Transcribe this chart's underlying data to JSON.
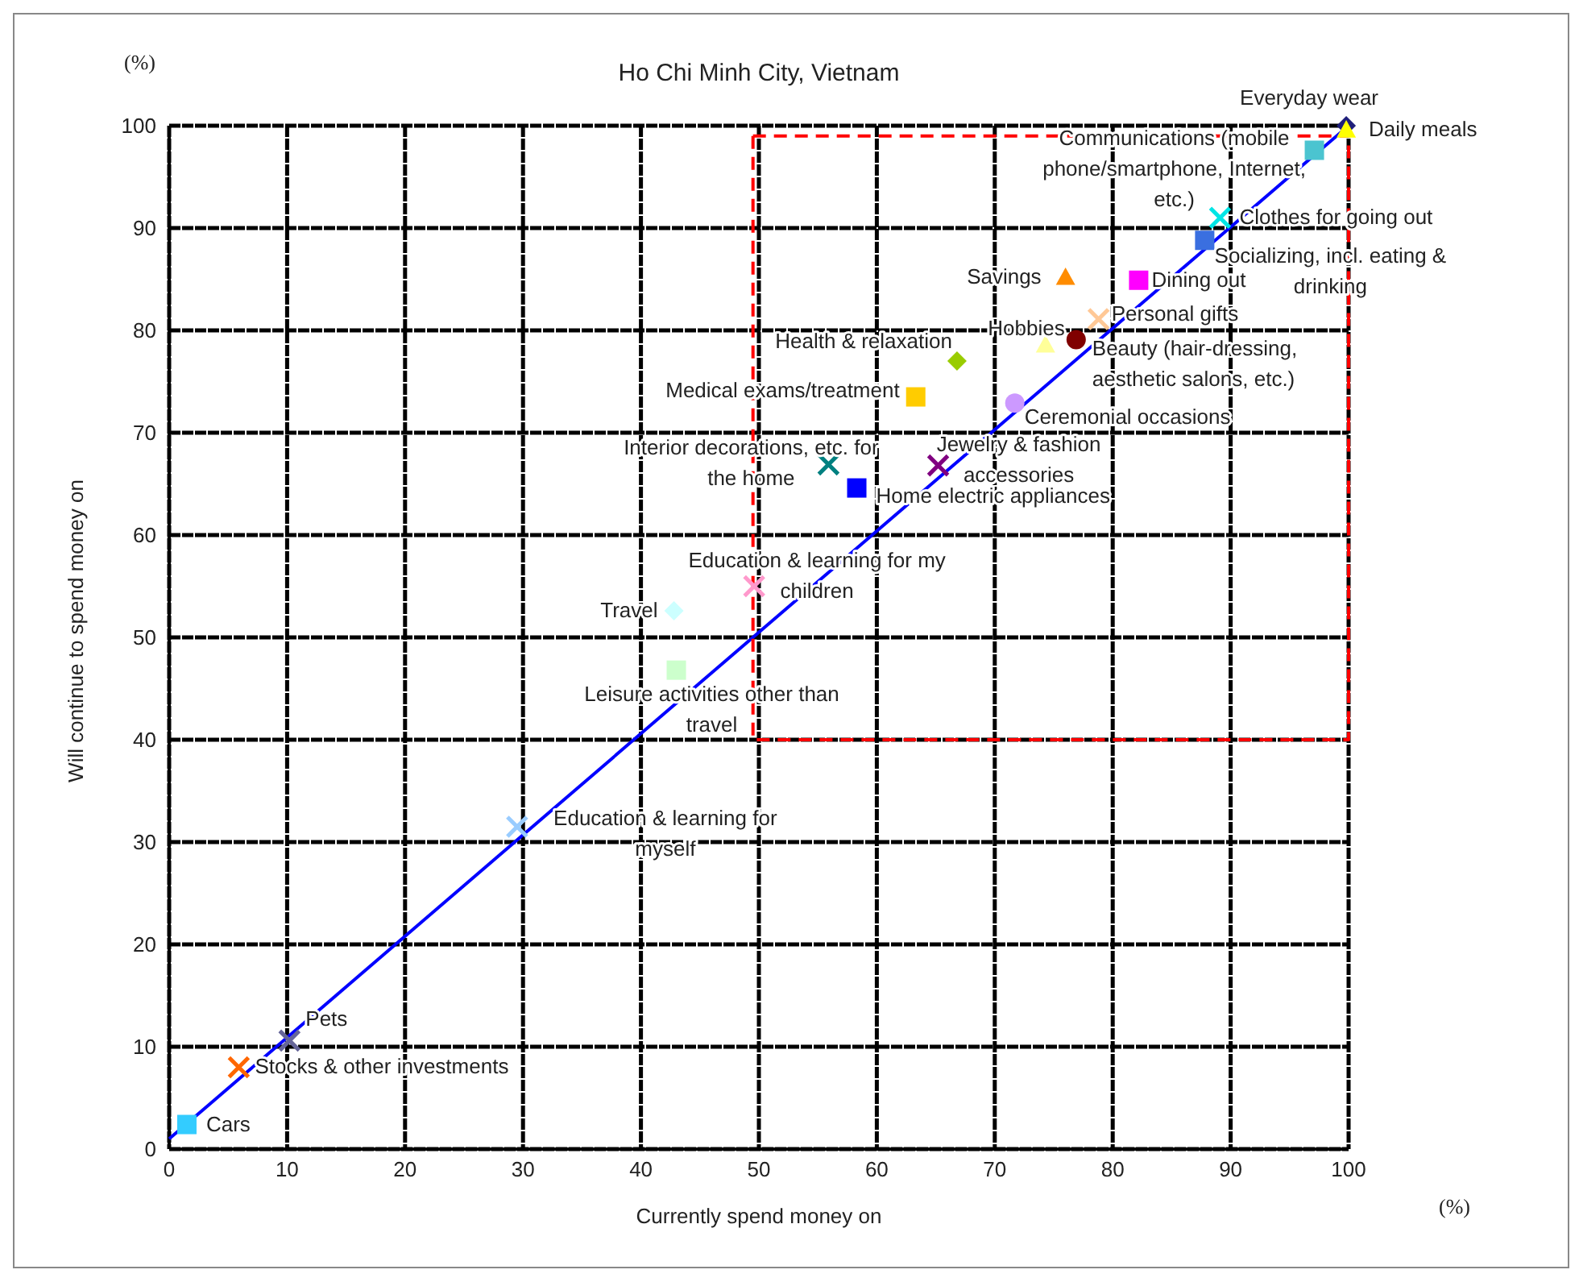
{
  "chart_data": {
    "type": "scatter",
    "title": "Ho Chi Minh City, Vietnam",
    "xlabel": "Currently spend money on",
    "ylabel": "Will continue to spend money on",
    "annotations": [
      "(%)",
      "(%)"
    ],
    "xlim": [
      0,
      100
    ],
    "ylim": [
      0,
      100
    ],
    "xticks": [
      0,
      10,
      20,
      30,
      40,
      50,
      60,
      70,
      80,
      90,
      100
    ],
    "yticks": [
      0,
      10,
      20,
      30,
      40,
      50,
      60,
      70,
      80,
      90,
      100
    ],
    "grid": true,
    "series": [
      {
        "name": "Everyday wear",
        "color": "#1f1f7a",
        "marker": "diamond",
        "x": [
          99.8
        ],
        "values": [
          100
        ]
      },
      {
        "name": "Daily meals",
        "color": "#ffff00",
        "marker": "triangle",
        "x": [
          99.8
        ],
        "values": [
          99.6
        ]
      },
      {
        "name": "Communications (mobile phone/smartphone, Internet, etc.)",
        "color": "#4bc4d0",
        "marker": "square",
        "x": [
          97.1
        ],
        "values": [
          97.6
        ]
      },
      {
        "name": "Clothes for going out",
        "color": "#00e5e5",
        "marker": "cross",
        "x": [
          89.1
        ],
        "values": [
          91
        ]
      },
      {
        "name": "Socializing, incl. eating & drinking",
        "color": "#3a6fe0",
        "marker": "square",
        "x": [
          87.8
        ],
        "values": [
          88.8
        ]
      },
      {
        "name": "Savings",
        "color": "#ff8c00",
        "marker": "triangle",
        "x": [
          76
        ],
        "values": [
          85.2
        ]
      },
      {
        "name": "Dining out",
        "color": "#ff00ff",
        "marker": "square",
        "x": [
          82.2
        ],
        "values": [
          84.9
        ]
      },
      {
        "name": "Personal gifts",
        "color": "#ffc896",
        "marker": "cross",
        "x": [
          78.8
        ],
        "values": [
          81.1
        ]
      },
      {
        "name": "Beauty (hair-dressing, aesthetic salons, etc.)",
        "color": "#800000",
        "marker": "circle",
        "x": [
          76.9
        ],
        "values": [
          79.1
        ]
      },
      {
        "name": "Hobbies",
        "color": "#ffff99",
        "marker": "triangle",
        "x": [
          74.3
        ],
        "values": [
          78.6
        ]
      },
      {
        "name": "Health & relaxation",
        "color": "#99cc00",
        "marker": "diamond",
        "x": [
          66.8
        ],
        "values": [
          77
        ]
      },
      {
        "name": "Medical exams/treatment",
        "color": "#ffcc00",
        "marker": "square",
        "x": [
          63.3
        ],
        "values": [
          73.5
        ]
      },
      {
        "name": "Ceremonial occasions",
        "color": "#cc99ff",
        "marker": "circle",
        "x": [
          71.7
        ],
        "values": [
          72.9
        ]
      },
      {
        "name": "Interior decorations, etc. for the home",
        "color": "#008080",
        "marker": "cross",
        "x": [
          55.9
        ],
        "values": [
          66.9
        ]
      },
      {
        "name": "Home electric appliances",
        "color": "#0000ff",
        "marker": "square",
        "x": [
          58.3
        ],
        "values": [
          64.6
        ]
      },
      {
        "name": "Jewelry & fashion accessories",
        "color": "#800080",
        "marker": "cross",
        "x": [
          65.2
        ],
        "values": [
          66.8
        ]
      },
      {
        "name": "Education & learning for my children",
        "color": "#ff99cc",
        "marker": "cross",
        "x": [
          49.6
        ],
        "values": [
          55
        ]
      },
      {
        "name": "Travel",
        "color": "#ccffff",
        "marker": "diamond",
        "x": [
          42.8
        ],
        "values": [
          52.6
        ]
      },
      {
        "name": "Leisure activities other than travel",
        "color": "#ccffcc",
        "marker": "square",
        "x": [
          43
        ],
        "values": [
          46.8
        ]
      },
      {
        "name": "Education & learning for myself",
        "color": "#99ccff",
        "marker": "cross",
        "x": [
          29.5
        ],
        "values": [
          31.5
        ]
      },
      {
        "name": "Pets",
        "color": "#666699",
        "marker": "cross",
        "x": [
          10.2
        ],
        "values": [
          10.6
        ]
      },
      {
        "name": "Stocks & other investments",
        "color": "#ff6600",
        "marker": "cross",
        "x": [
          5.9
        ],
        "values": [
          8
        ]
      },
      {
        "name": "Cars",
        "color": "#33ccff",
        "marker": "square",
        "x": [
          1.5
        ],
        "values": [
          2.4
        ]
      },
      {
        "type": "line",
        "color": "#0000ff",
        "line_style": "solid",
        "x": [
          0,
          100
        ],
        "values": [
          1,
          100
        ]
      },
      {
        "type": "line",
        "color": "#ff0000",
        "line_style": "dashed",
        "x": [
          49.5,
          49.5,
          100,
          100
        ],
        "values": [
          99,
          40,
          40,
          99
        ]
      },
      {
        "type": "line",
        "color": "#ff0000",
        "line_style": "dashed",
        "x": [
          49.5,
          100
        ],
        "values": [
          99,
          99
        ]
      }
    ]
  }
}
